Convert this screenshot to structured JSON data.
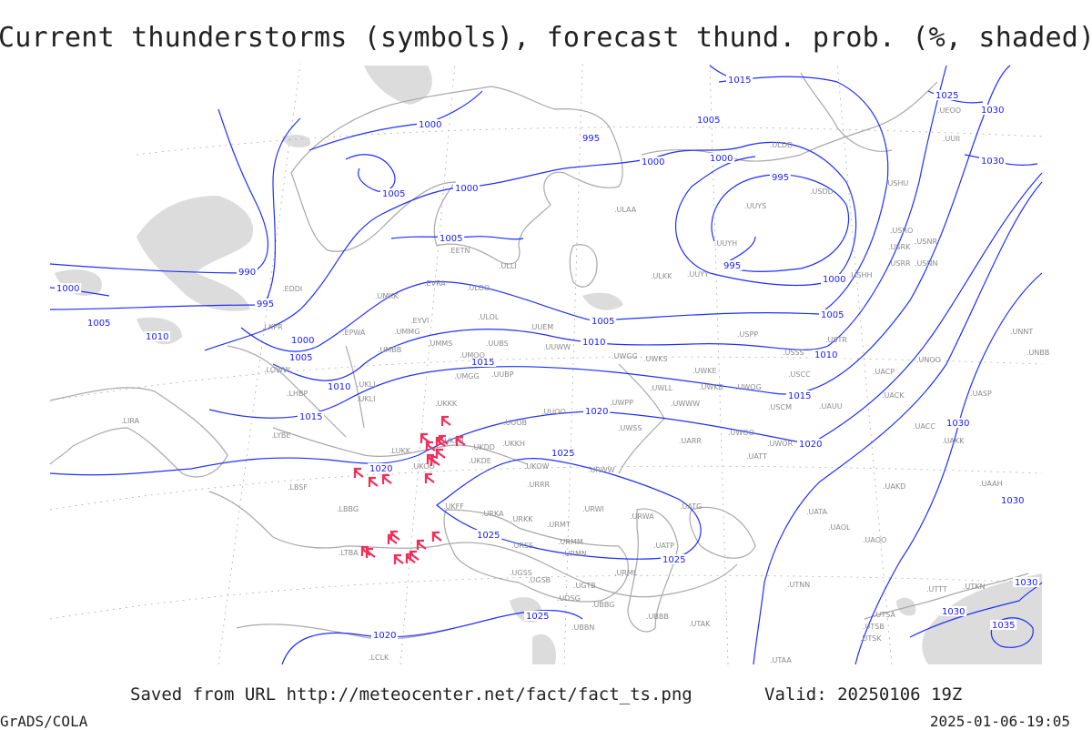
{
  "title": "Current thunderstorms (symbols), forecast thund. prob. (%, shaded)",
  "footer": {
    "saved": "Saved from URL http://meteocenter.net/fact/fact_ts.png",
    "valid": "Valid: 20250106 19Z",
    "software": "GrADS/COLA",
    "timestamp": "2025-01-06-19:05"
  },
  "colors": {
    "isobars": "#1f2fff",
    "thunderstorm_symbols": "#f0305a",
    "coastlines": "#a8a8a8",
    "probability_shading": "#dcdcdc"
  },
  "contour_labels": [
    "1015",
    "1005",
    "1025",
    "1030",
    "1000",
    "995",
    "1000",
    "1005",
    "1000",
    "1005",
    "995",
    "1000",
    "995",
    "990",
    "1000",
    "1000",
    "1005",
    "995",
    "1005",
    "1000",
    "1005",
    "1010",
    "1005",
    "1010",
    "1015",
    "1010",
    "1010",
    "1015",
    "1015",
    "1020",
    "1020",
    "1020",
    "1025",
    "1025",
    "1025",
    "1030",
    "1025",
    "1020",
    "1030",
    "1030",
    "1035",
    "1030",
    "1030"
  ],
  "stations": [
    "ULDD",
    "UUYS",
    "USDD",
    "USHU",
    "UUYH",
    "USRO",
    "USRK",
    "USNR",
    "USRR",
    "USNN",
    "USHH",
    "ULKK",
    "UUYY",
    "ULAA",
    "EETN",
    "ULLI",
    "EVRA",
    "ULOO",
    "UMKK",
    "EDDI",
    "LKPR",
    "EPWA",
    "EYVI",
    "UMMG",
    "ULOL",
    "UUEM",
    "UMBB",
    "UMMS",
    "UMOO",
    "UUBS",
    "UUWW",
    "LOWW",
    "LHBP",
    "UKLL",
    "UKLI",
    "UMGG",
    "UUBP",
    "UKKK",
    "UUOB",
    "UUOO",
    "UWGG",
    "UWKS",
    "USPP",
    "USSS",
    "USTR",
    "UWKE",
    "USCC",
    "UACP",
    "UNOO",
    "UWLL",
    "UWKB",
    "UWOG",
    "UACK",
    "UASP",
    "UWPP",
    "UWWW",
    "USCM",
    "UAUU",
    "UWSS",
    "UARR",
    "UWOO",
    "UWOR",
    "UATT",
    "UACC",
    "UAKK",
    "UNNT",
    "UNBB",
    "LIRA",
    "LYBE",
    "LUKK",
    "UKOO",
    "UKKH",
    "UKDD",
    "UKDE",
    "UKFB",
    "URWW",
    "UKOW",
    "LBSF",
    "UKFF",
    "URRR",
    "URKA",
    "URKK",
    "URWI",
    "URMT",
    "URWA",
    "UATG",
    "UATA",
    "UAKD",
    "UAAH",
    "UAOL",
    "UAOO",
    "LBBG",
    "URMM",
    "URMN",
    "URML",
    "UATP",
    "URSS",
    "LTBA",
    "UGSB",
    "UGTB",
    "UGSS",
    "UDSG",
    "UBBG",
    "UBBN",
    "UBBB",
    "UTAK",
    "UTNN",
    "UTSA",
    "UTSB",
    "UTSK",
    "UTTT",
    "UTKN",
    "LCLK",
    "UTAA",
    "UUII",
    "UEOO"
  ],
  "thunderstorm_count": 22
}
